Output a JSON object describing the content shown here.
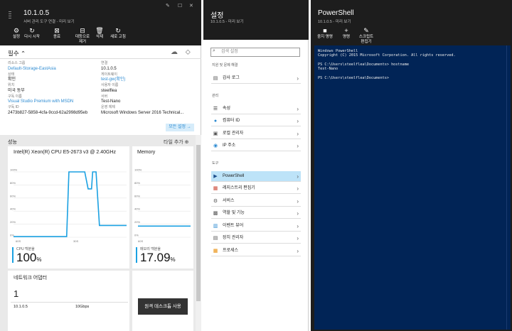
{
  "panel1": {
    "title": "10.1.0.5",
    "subtitle": "서버 관리 도구 연결 - 미리 보기",
    "toolbar": [
      {
        "label": "설정",
        "icon": "gear-icon",
        "glyph": "⚙"
      },
      {
        "label": "다시 시작",
        "icon": "restart-icon",
        "glyph": "↻"
      },
      {
        "label": "종료",
        "icon": "shutdown-icon",
        "glyph": "⊠"
      },
      {
        "label": "대등으로\n제거",
        "icon": "remove-icon",
        "glyph": "⊟"
      },
      {
        "label": "삭제",
        "icon": "trash-icon",
        "glyph": "🗑"
      },
      {
        "label": "새로 고침",
        "icon": "refresh-icon",
        "glyph": "↻"
      }
    ],
    "essentials_label": "필수",
    "left": [
      {
        "k": "리소스 그룹",
        "v": "Default-Storage-EastAsia",
        "link": true
      },
      {
        "k": "상태",
        "v": "확인",
        "link": false
      },
      {
        "k": "위치",
        "v": "미국 동부",
        "link": false
      },
      {
        "k": "구독 이름",
        "v": "Visual Studio Premium with MSDN",
        "link": true
      },
      {
        "k": "구독 ID",
        "v": "2473b827-5858-4cfa-9ccd-62a2998d95eb",
        "link": false
      }
    ],
    "right": [
      {
        "k": "연결",
        "v": "10.1.0.5",
        "link": false
      },
      {
        "k": "게이트웨이",
        "v": "test-gw(확인)",
        "link": true
      },
      {
        "k": "사용자 이름",
        "v": "steelflea",
        "link": false
      },
      {
        "k": "서버",
        "v": "Test-Nano",
        "link": false
      },
      {
        "k": "운영 체제",
        "v": "Microsoft Windows Server 2016 Technical...",
        "link": false
      }
    ],
    "all_settings": "모든 설정 →",
    "performance_label": "성능",
    "add_tile": "타일 추가 ⊕",
    "cpu": {
      "title": "Intel(R) Xeon(R) CPU E5-2673 v3 @ 2.40GHz",
      "value": "100",
      "unit": "%",
      "caption": "CPU 백분율",
      "y_ticks": [
        "100%",
        "80%",
        "60%",
        "40%",
        "20%",
        "0%"
      ],
      "x_ticks": [
        "60S",
        "30S"
      ],
      "line_color": "#1ba1e2"
    },
    "memory": {
      "title": "Memory",
      "value": "17.09",
      "unit": "%",
      "caption": "메모리 백분율",
      "y_ticks": [
        "100%",
        "80%",
        "60%",
        "40%",
        "20%",
        "0%"
      ],
      "x_ticks": [
        "60S"
      ]
    },
    "network": {
      "title": "네트워크 어댑터",
      "count": "1",
      "ip": "10.1.0.5",
      "speed": "10Gbps"
    },
    "remote_desktop": "원격 데스크톱 사용"
  },
  "panel2": {
    "title": "설정",
    "subtitle": "10.1.0.5 - 미리 보기",
    "search_placeholder": "검색 설정",
    "sections": [
      {
        "label": "지원 및 문제 해결",
        "items": [
          {
            "label": "감사 로그",
            "icon": "log-icon",
            "glyph": "▤",
            "color": "#555"
          }
        ]
      },
      {
        "label": "관리",
        "items": [
          {
            "label": "속성",
            "icon": "properties-icon",
            "glyph": "☰",
            "color": "#333"
          },
          {
            "label": "컴퓨터 ID",
            "icon": "computer-id-icon",
            "glyph": "●",
            "color": "#2d8bd2"
          },
          {
            "label": "로컬 관리자",
            "icon": "admin-icon",
            "glyph": "▣",
            "color": "#555"
          },
          {
            "label": "IP 주소",
            "icon": "ip-icon",
            "glyph": "◉",
            "color": "#2d8bd2"
          }
        ]
      },
      {
        "label": "도구",
        "items": [
          {
            "label": "PowerShell",
            "icon": "powershell-icon",
            "glyph": "▶",
            "color": "#1e4e8c",
            "selected": true
          },
          {
            "label": "레지스트리 편집기",
            "icon": "registry-icon",
            "glyph": "▦",
            "color": "#c43"
          },
          {
            "label": "서비스",
            "icon": "services-icon",
            "glyph": "⚙",
            "color": "#555"
          },
          {
            "label": "역할 및 기능",
            "icon": "roles-icon",
            "glyph": "▩",
            "color": "#555"
          },
          {
            "label": "이벤트 뷰어",
            "icon": "event-viewer-icon",
            "glyph": "▥",
            "color": "#2d8bd2"
          },
          {
            "label": "장치 관리자",
            "icon": "device-manager-icon",
            "glyph": "▤",
            "color": "#555"
          },
          {
            "label": "프로세스",
            "icon": "process-icon",
            "glyph": "▦",
            "color": "#e88a00"
          }
        ]
      }
    ]
  },
  "panel3": {
    "title": "PowerShell",
    "subtitle": "10.1.0.5 - 미리 보기",
    "toolbar": [
      {
        "label": "중지 명령",
        "icon": "stop-icon",
        "glyph": "■"
      },
      {
        "label": "명령",
        "icon": "plus-icon",
        "glyph": "+"
      },
      {
        "label": "스크립트\n편집기",
        "icon": "pencil-icon",
        "glyph": "✎"
      }
    ],
    "console_lines": [
      "Windows PowerShell",
      "Copyright (C) 2015 Microsoft Corporation. All rights reserved.",
      "",
      "PS C:\\Users\\steelflea\\Documents> hostname",
      "Test-Nano",
      "",
      "PS C:\\Users\\steelflea\\Documents>"
    ]
  }
}
